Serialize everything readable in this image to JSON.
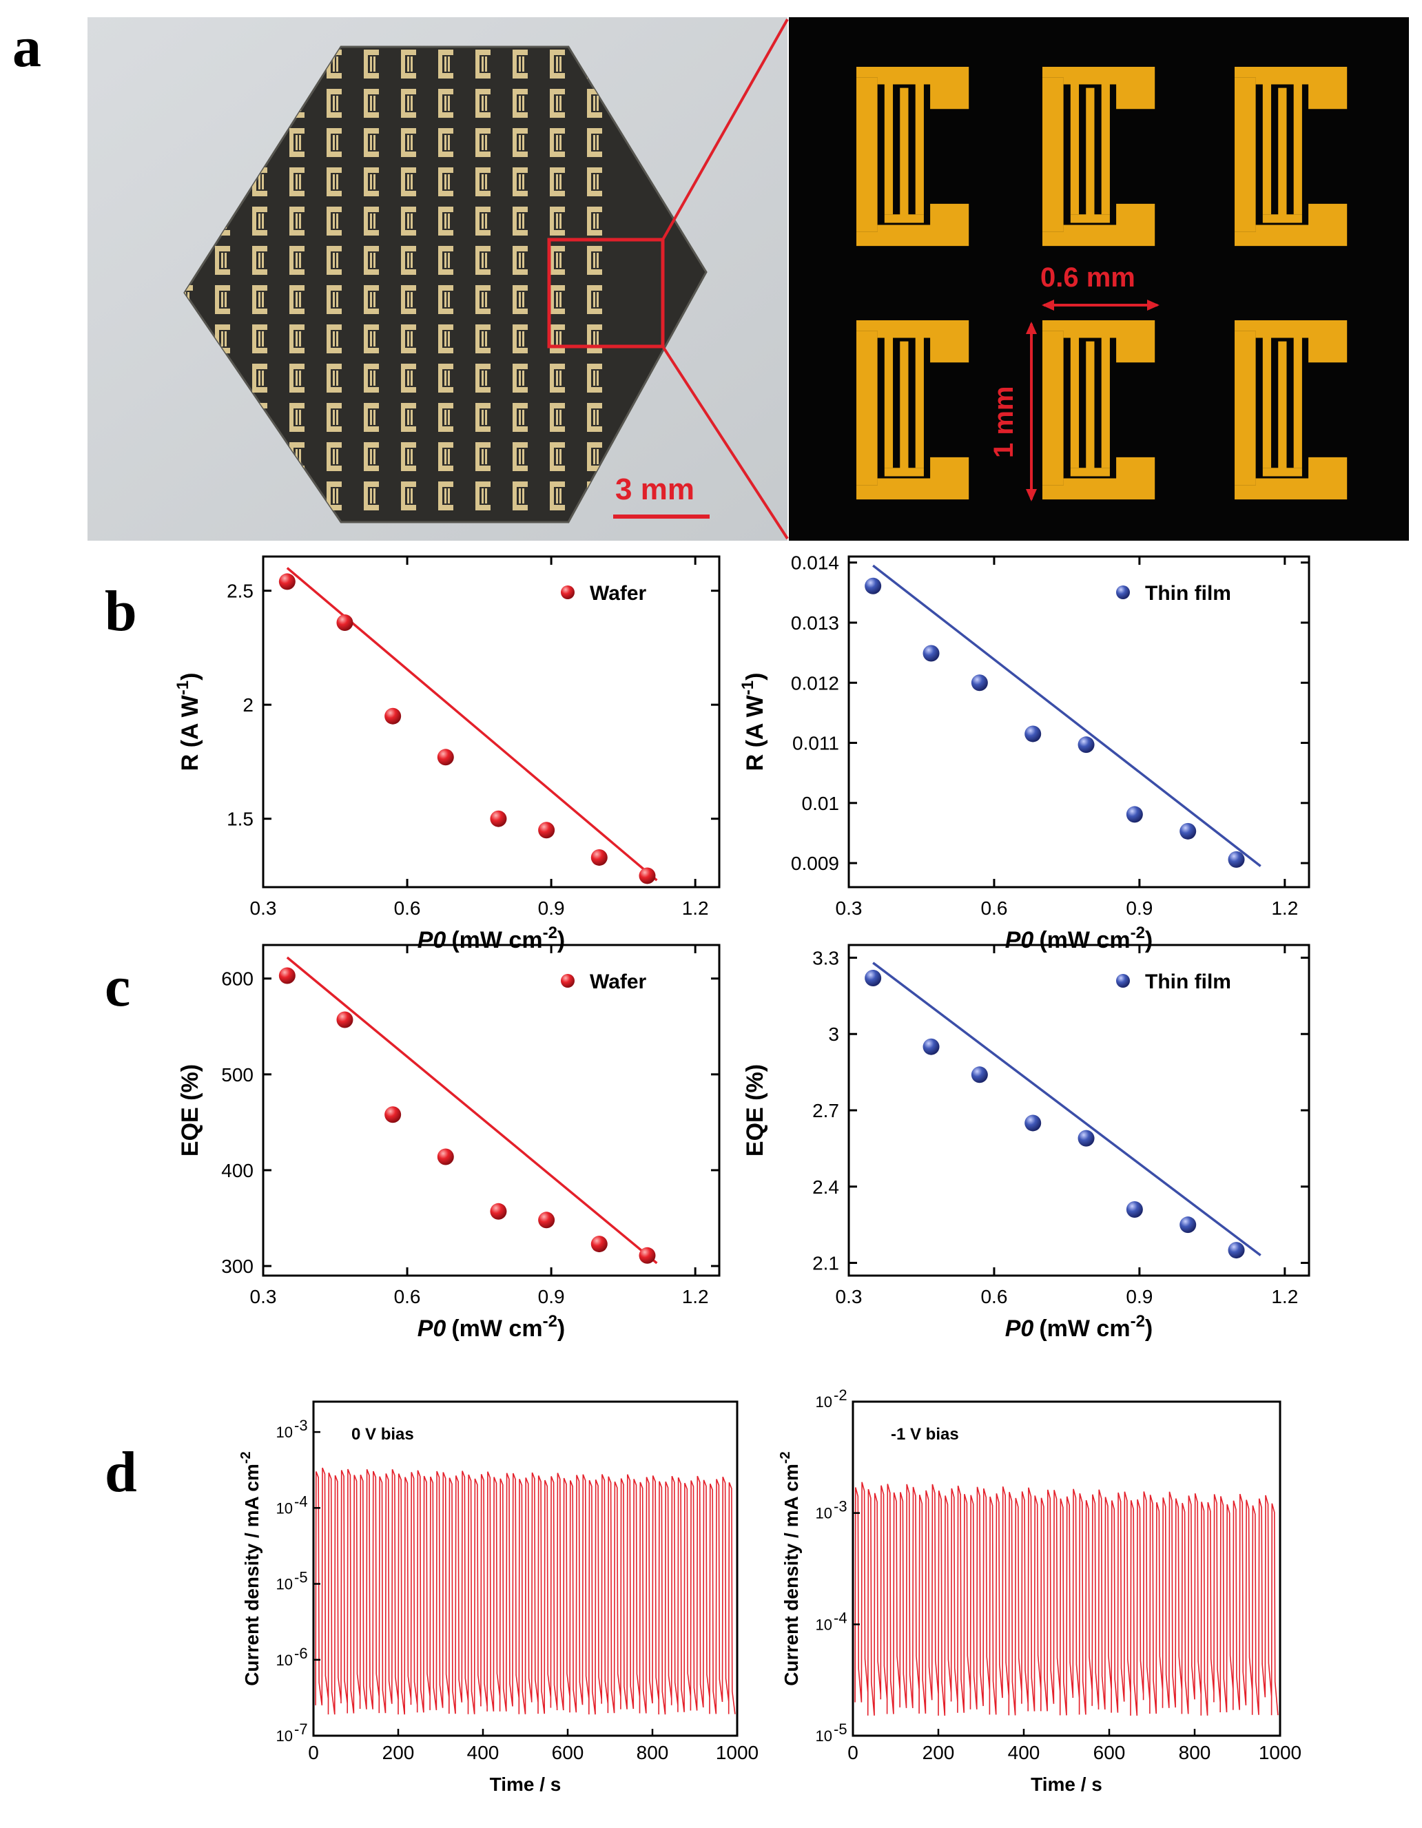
{
  "panels": {
    "a": "a",
    "b": "b",
    "c": "c",
    "d": "d"
  },
  "photo": {
    "scale_bar": "3 mm",
    "dim_horizontal": "0.6 mm",
    "dim_vertical": "1 mm",
    "pad_color": "#e9a615",
    "annotation_color": "#e0202a"
  },
  "chart_data": [
    {
      "id": "b-left",
      "type": "scatter",
      "legend": "Wafer",
      "color": "#e4202a",
      "xlabel_italic": "P0",
      "xlabel_unit": "(mW cm",
      "xlabel_exp": "-2",
      "xlabel_close": ")",
      "ylabel": "R (A W",
      "ylabel_exp": "-1",
      "ylabel_close": ")",
      "xlim": [
        0.3,
        1.25
      ],
      "ylim": [
        1.2,
        2.65
      ],
      "xticks": [
        0.3,
        0.6,
        0.9,
        1.2
      ],
      "xtick_labels": [
        "0.3",
        "0.6",
        "0.9",
        "1.2"
      ],
      "yticks": [
        1.5,
        2.0,
        2.5
      ],
      "ytick_labels": [
        "1.5",
        "2",
        "2.5"
      ],
      "x": [
        0.35,
        0.47,
        0.57,
        0.68,
        0.79,
        0.89,
        1.0,
        1.1
      ],
      "y": [
        2.54,
        2.36,
        1.95,
        1.77,
        1.5,
        1.45,
        1.33,
        1.25
      ],
      "fit": {
        "x": [
          0.35,
          1.12
        ],
        "y": [
          2.6,
          1.23
        ]
      }
    },
    {
      "id": "b-right",
      "type": "scatter",
      "legend": "Thin film",
      "color": "#3b4ea8",
      "xlabel_italic": "P0",
      "xlabel_unit": "(mW cm",
      "xlabel_exp": "-2",
      "xlabel_close": ")",
      "ylabel": "R (A W",
      "ylabel_exp": "-1",
      "ylabel_close": ")",
      "xlim": [
        0.3,
        1.25
      ],
      "ylim": [
        0.0086,
        0.0141
      ],
      "xticks": [
        0.3,
        0.6,
        0.9,
        1.2
      ],
      "xtick_labels": [
        "0.3",
        "0.6",
        "0.9",
        "1.2"
      ],
      "yticks": [
        0.009,
        0.01,
        0.011,
        0.012,
        0.013,
        0.014
      ],
      "ytick_labels": [
        "0.009",
        "0.01",
        "0.011",
        "0.012",
        "0.013",
        "0.014"
      ],
      "x": [
        0.35,
        0.47,
        0.57,
        0.68,
        0.79,
        0.89,
        1.0,
        1.1
      ],
      "y": [
        0.01361,
        0.01249,
        0.012,
        0.01115,
        0.01097,
        0.00981,
        0.00953,
        0.00906
      ],
      "fit": {
        "x": [
          0.35,
          1.15
        ],
        "y": [
          0.01395,
          0.00895
        ]
      }
    },
    {
      "id": "c-left",
      "type": "scatter",
      "legend": "Wafer",
      "color": "#e4202a",
      "xlabel_italic": "P0",
      "xlabel_unit": "(mW cm",
      "xlabel_exp": "-2",
      "xlabel_close": ")",
      "ylabel": "EQE (%)",
      "xlim": [
        0.3,
        1.25
      ],
      "ylim": [
        290,
        635
      ],
      "xticks": [
        0.3,
        0.6,
        0.9,
        1.2
      ],
      "xtick_labels": [
        "0.3",
        "0.6",
        "0.9",
        "1.2"
      ],
      "yticks": [
        300,
        400,
        500,
        600
      ],
      "ytick_labels": [
        "300",
        "400",
        "500",
        "600"
      ],
      "x": [
        0.35,
        0.47,
        0.57,
        0.68,
        0.79,
        0.89,
        1.0,
        1.1
      ],
      "y": [
        603,
        557,
        458,
        414,
        357,
        348,
        323,
        311
      ],
      "fit": {
        "x": [
          0.35,
          1.12
        ],
        "y": [
          622,
          303
        ]
      }
    },
    {
      "id": "c-right",
      "type": "scatter",
      "legend": "Thin film",
      "color": "#3b4ea8",
      "xlabel_italic": "P0",
      "xlabel_unit": "(mW cm",
      "xlabel_exp": "-2",
      "xlabel_close": ")",
      "ylabel": "EQE (%)",
      "xlim": [
        0.3,
        1.25
      ],
      "ylim": [
        2.05,
        3.35
      ],
      "xticks": [
        0.3,
        0.6,
        0.9,
        1.2
      ],
      "xtick_labels": [
        "0.3",
        "0.6",
        "0.9",
        "1.2"
      ],
      "yticks": [
        2.1,
        2.4,
        2.7,
        3.0,
        3.3
      ],
      "ytick_labels": [
        "2.1",
        "2.4",
        "2.7",
        "3",
        "3.3"
      ],
      "x": [
        0.35,
        0.47,
        0.57,
        0.68,
        0.79,
        0.89,
        1.0,
        1.1
      ],
      "y": [
        3.22,
        2.95,
        2.84,
        2.65,
        2.59,
        2.31,
        2.25,
        2.15
      ],
      "fit": {
        "x": [
          0.35,
          1.15
        ],
        "y": [
          3.28,
          2.13
        ]
      }
    },
    {
      "id": "d-left",
      "type": "line",
      "annotation": "0 V bias",
      "color": "#e4202a",
      "xlabel": "Time / s",
      "ylabel": "Current density / mA cm",
      "ylabel_exp": "-2",
      "xlim": [
        0,
        1000
      ],
      "ylog": true,
      "ylim_log10": [
        -7,
        -2.6
      ],
      "xticks": [
        0,
        200,
        400,
        600,
        800,
        1000
      ],
      "xtick_labels": [
        "0",
        "200",
        "400",
        "600",
        "800",
        "1000"
      ],
      "ytick_log10": [
        -7,
        -6,
        -5,
        -4,
        -3
      ],
      "ytick_exps": [
        "-7",
        "-6",
        "-5",
        "-4",
        "-3"
      ],
      "tick_base": "10",
      "on_log10": -3.6,
      "off_log10": -6.6,
      "periods": 66
    },
    {
      "id": "d-right",
      "type": "line",
      "annotation": "-1 V bias",
      "color": "#e4202a",
      "xlabel": "Time / s",
      "ylabel": "Current density / mA cm",
      "ylabel_exp": "-2",
      "xlim": [
        0,
        1000
      ],
      "ylog": true,
      "ylim_log10": [
        -5,
        -2
      ],
      "xticks": [
        0,
        200,
        400,
        600,
        800,
        1000
      ],
      "xtick_labels": [
        "0",
        "200",
        "400",
        "600",
        "800",
        "1000"
      ],
      "ytick_log10": [
        -5,
        -4,
        -3,
        -2
      ],
      "ytick_exps": [
        "-5",
        "-4",
        "-3",
        "-2"
      ],
      "tick_base": "10",
      "on_log10": -2.85,
      "off_log10": -4.7,
      "periods": 66
    }
  ]
}
